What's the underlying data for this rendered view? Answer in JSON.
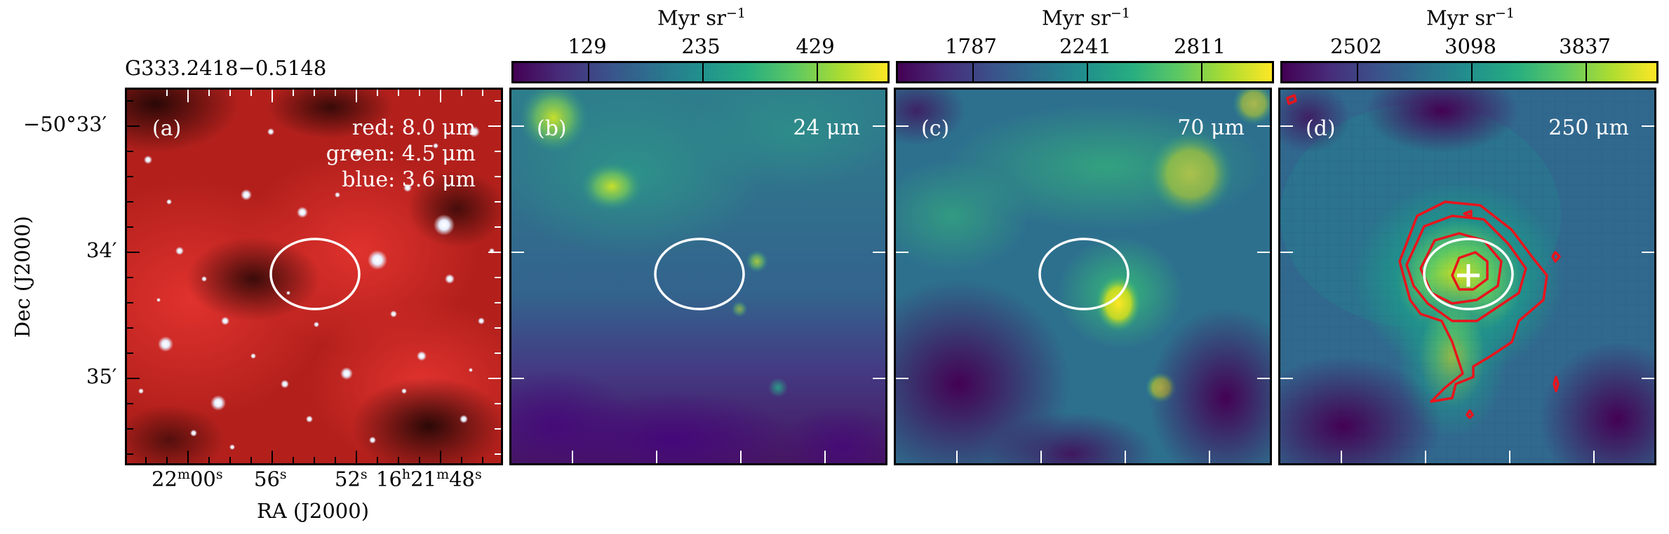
{
  "figure": {
    "source_name": "G333.2418−0.5148",
    "panels": [
      {
        "label": "(a)",
        "lines": [
          "red: 8.0 μm",
          "green: 4.5 μm",
          "blue: 3.6 μm"
        ]
      },
      {
        "label": "(b)",
        "lines": [
          "24 μm"
        ]
      },
      {
        "label": "(c)",
        "lines": [
          "70 μm"
        ]
      },
      {
        "label": "(d)",
        "lines": [
          "250 μm"
        ]
      }
    ],
    "colorbars": [
      {
        "unit": "Myr sr",
        "unit_exp": "−1",
        "ticks": [
          "129",
          "235",
          "429"
        ]
      },
      {
        "unit": "Myr sr",
        "unit_exp": "−1",
        "ticks": [
          "1787",
          "2241",
          "2811"
        ]
      },
      {
        "unit": "Myr sr",
        "unit_exp": "−1",
        "ticks": [
          "2502",
          "3098",
          "3837"
        ]
      }
    ],
    "axes": {
      "ylabel": "Dec (J2000)",
      "xlabel": "RA (J2000)",
      "dec_ticks": [
        {
          "main": "−50°33",
          "sec": "′"
        },
        {
          "main": "34",
          "sec": "′"
        },
        {
          "main": "35",
          "sec": "′"
        }
      ],
      "ra_ticks": [
        {
          "a": "22",
          "a_sup": "m",
          "b": "00",
          "b_sup": "s"
        },
        {
          "a": "56",
          "a_sup": "s",
          "b": "",
          "b_sup": ""
        },
        {
          "a": "52",
          "a_sup": "s",
          "b": "",
          "b_sup": ""
        },
        {
          "a": "16",
          "a_sup": "h",
          "b": "21",
          "b_sup": "m",
          "c": "48",
          "c_sup": "s"
        }
      ]
    },
    "colors": {
      "contour": "#e8141c",
      "ellipse": "#ffffff"
    }
  }
}
